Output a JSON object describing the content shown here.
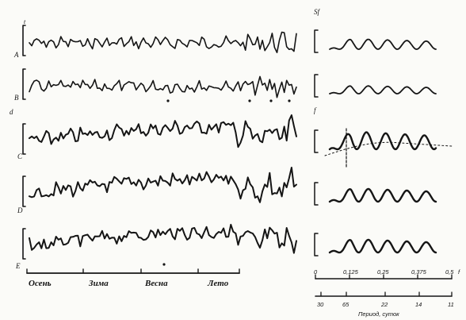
{
  "chart_data": [
    {
      "type": "line",
      "panel": "time-series",
      "row_labels": [
        "А",
        "В",
        "С",
        "D",
        "Е"
      ],
      "row_top_label": "t",
      "marker_label": "d",
      "seasons": [
        "Осень",
        "Зима",
        "Весна",
        "Лето"
      ],
      "series_count": 5
    },
    {
      "type": "line",
      "panel": "spectra",
      "ylabel": "Sf",
      "x_ticks_frequency": [
        "0",
        "0,125",
        "0,25",
        "0,375",
        "0,5"
      ],
      "x_unit_frequency": "f",
      "x_ticks_period": [
        "30",
        "65",
        "22",
        "14",
        "11"
      ],
      "xlabel_period": "Период, суток",
      "xlim": [
        0,
        0.5
      ],
      "peak_marker_label": "f"
    }
  ],
  "colors": {
    "ink": "#151515",
    "paper": "#fbfbf8"
  }
}
